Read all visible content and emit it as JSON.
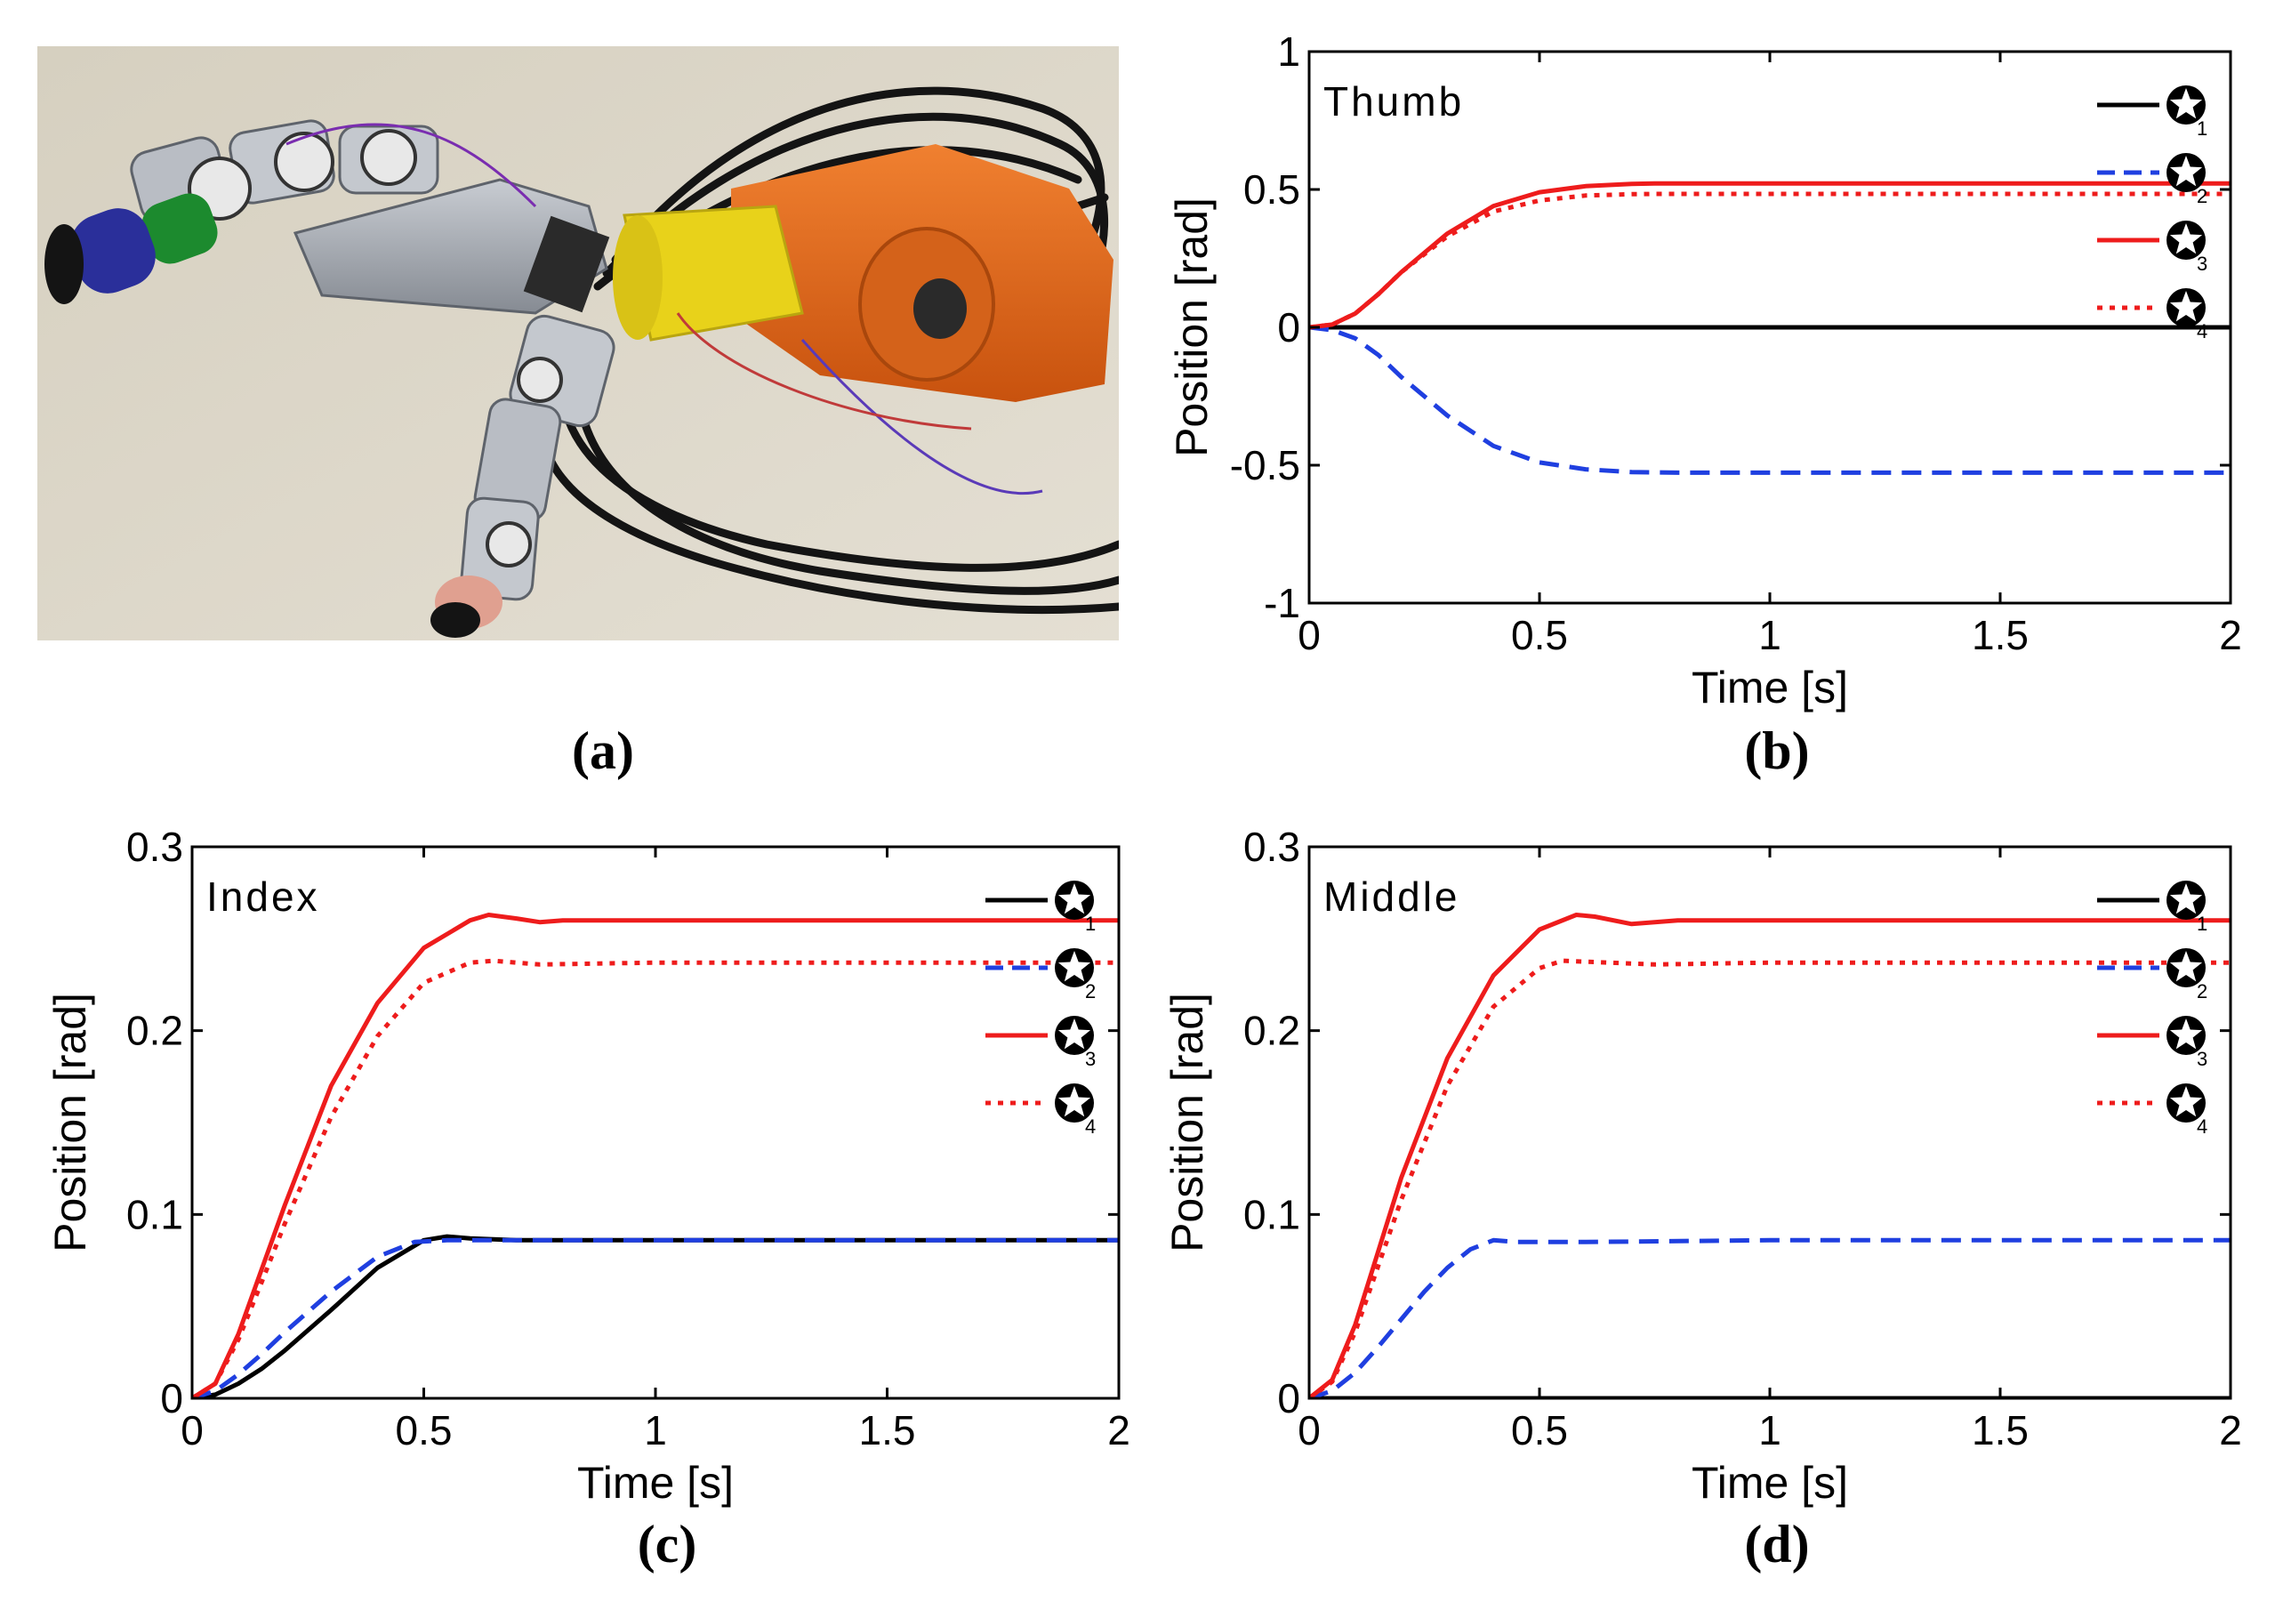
{
  "panels": {
    "a": "(a)",
    "b": "(b)",
    "c": "(c)",
    "d": "(d)"
  },
  "photo": {
    "subject": "robotic-hand-mounted-on-arm",
    "colors": {
      "wall": "#d8d2c4",
      "arm_orange": "#e06a1c",
      "arm_yellow": "#e8d21a",
      "metal": "#a9adb3",
      "cable": "#141414",
      "finger_green": "#1c8a2e",
      "finger_blue": "#2a2f9a",
      "finger_pink": "#e0a090"
    }
  },
  "legend": {
    "markers": [
      "1",
      "2",
      "3",
      "4"
    ],
    "styles": [
      "solid-black",
      "dashed-blue",
      "solid-red",
      "dotted-red"
    ]
  },
  "colors": {
    "black": "#000000",
    "blue": "#1f3fe0",
    "red": "#ee1c1c"
  },
  "chart_data": [
    {
      "panel": "b",
      "type": "line",
      "annotation": "Thumb",
      "xlabel": "Time [s]",
      "ylabel": "Position [rad]",
      "xlim": [
        0,
        2
      ],
      "ylim": [
        -1,
        1
      ],
      "xticks": [
        "0",
        "0.5",
        "1",
        "1.5",
        "2"
      ],
      "yticks": [
        "-1",
        "-0.5",
        "0",
        "0.5",
        "1"
      ],
      "series": [
        {
          "marker": "1",
          "style": "solid-black",
          "x": [
            0,
            2
          ],
          "y": [
            0,
            0
          ]
        },
        {
          "marker": "2",
          "style": "dashed-blue",
          "x": [
            0,
            0.05,
            0.1,
            0.15,
            0.2,
            0.3,
            0.4,
            0.5,
            0.6,
            0.7,
            0.8,
            1.0,
            2.0
          ],
          "y": [
            0,
            -0.01,
            -0.04,
            -0.1,
            -0.18,
            -0.32,
            -0.43,
            -0.49,
            -0.515,
            -0.525,
            -0.527,
            -0.527,
            -0.527
          ]
        },
        {
          "marker": "3",
          "style": "solid-red",
          "x": [
            0,
            0.05,
            0.1,
            0.15,
            0.2,
            0.3,
            0.4,
            0.5,
            0.6,
            0.7,
            0.75,
            1.0,
            2.0
          ],
          "y": [
            0,
            0.01,
            0.05,
            0.12,
            0.2,
            0.34,
            0.44,
            0.49,
            0.512,
            0.52,
            0.522,
            0.522,
            0.522
          ]
        },
        {
          "marker": "4",
          "style": "dotted-red",
          "x": [
            0,
            0.05,
            0.1,
            0.15,
            0.2,
            0.3,
            0.4,
            0.5,
            0.6,
            0.7,
            0.75,
            1.0,
            2.0
          ],
          "y": [
            0,
            0.01,
            0.05,
            0.12,
            0.2,
            0.33,
            0.42,
            0.46,
            0.478,
            0.483,
            0.484,
            0.484,
            0.484
          ]
        }
      ]
    },
    {
      "panel": "c",
      "type": "line",
      "annotation": "Index",
      "xlabel": "Time [s]",
      "ylabel": "Position [rad]",
      "xlim": [
        0,
        2
      ],
      "ylim": [
        0,
        0.3
      ],
      "xticks": [
        "0",
        "0.5",
        "1",
        "1.5",
        "2"
      ],
      "yticks": [
        "0",
        "0.1",
        "0.2",
        "0.3"
      ],
      "series": [
        {
          "marker": "1",
          "style": "solid-black",
          "x": [
            0,
            0.05,
            0.1,
            0.15,
            0.2,
            0.3,
            0.4,
            0.5,
            0.55,
            0.6,
            0.7,
            1.0,
            2.0
          ],
          "y": [
            0,
            0.002,
            0.008,
            0.016,
            0.026,
            0.048,
            0.071,
            0.086,
            0.088,
            0.087,
            0.086,
            0.086,
            0.086
          ]
        },
        {
          "marker": "2",
          "style": "dashed-blue",
          "x": [
            0,
            0.05,
            0.1,
            0.15,
            0.2,
            0.3,
            0.4,
            0.48,
            0.55,
            0.7,
            1.0,
            2.0
          ],
          "y": [
            0,
            0.004,
            0.013,
            0.024,
            0.036,
            0.058,
            0.077,
            0.085,
            0.086,
            0.086,
            0.086,
            0.086
          ]
        },
        {
          "marker": "3",
          "style": "solid-red",
          "x": [
            0,
            0.05,
            0.1,
            0.15,
            0.2,
            0.3,
            0.4,
            0.5,
            0.6,
            0.64,
            0.7,
            0.75,
            0.8,
            1.0,
            2.0
          ],
          "y": [
            0,
            0.008,
            0.035,
            0.07,
            0.105,
            0.17,
            0.215,
            0.245,
            0.26,
            0.263,
            0.261,
            0.259,
            0.26,
            0.26,
            0.26
          ]
        },
        {
          "marker": "4",
          "style": "dotted-red",
          "x": [
            0,
            0.05,
            0.1,
            0.15,
            0.2,
            0.3,
            0.4,
            0.5,
            0.6,
            0.65,
            0.75,
            1.0,
            2.0
          ],
          "y": [
            0,
            0.008,
            0.032,
            0.063,
            0.095,
            0.153,
            0.197,
            0.226,
            0.237,
            0.238,
            0.236,
            0.237,
            0.237
          ]
        }
      ]
    },
    {
      "panel": "d",
      "type": "line",
      "annotation": "Middle",
      "xlabel": "Time [s]",
      "ylabel": "Position [rad]",
      "xlim": [
        0,
        2
      ],
      "ylim": [
        0,
        0.3
      ],
      "xticks": [
        "0",
        "0.5",
        "1",
        "1.5",
        "2"
      ],
      "yticks": [
        "0",
        "0.1",
        "0.2",
        "0.3"
      ],
      "series": [
        {
          "marker": "1",
          "style": "solid-black",
          "x": [
            0,
            2
          ],
          "y": [
            0,
            0
          ]
        },
        {
          "marker": "2",
          "style": "dashed-blue",
          "x": [
            0,
            0.05,
            0.1,
            0.15,
            0.2,
            0.25,
            0.3,
            0.35,
            0.4,
            0.45,
            0.6,
            1.0,
            2.0
          ],
          "y": [
            0,
            0.004,
            0.014,
            0.028,
            0.043,
            0.058,
            0.071,
            0.081,
            0.086,
            0.085,
            0.085,
            0.086,
            0.086
          ]
        },
        {
          "marker": "3",
          "style": "solid-red",
          "x": [
            0,
            0.05,
            0.1,
            0.15,
            0.2,
            0.3,
            0.4,
            0.5,
            0.58,
            0.62,
            0.7,
            0.8,
            1.0,
            2.0
          ],
          "y": [
            0,
            0.01,
            0.04,
            0.08,
            0.12,
            0.185,
            0.23,
            0.255,
            0.263,
            0.262,
            0.258,
            0.26,
            0.26,
            0.26
          ]
        },
        {
          "marker": "4",
          "style": "dotted-red",
          "x": [
            0,
            0.05,
            0.1,
            0.15,
            0.2,
            0.3,
            0.4,
            0.5,
            0.55,
            0.65,
            0.75,
            1.0,
            2.0
          ],
          "y": [
            0,
            0.009,
            0.036,
            0.072,
            0.108,
            0.17,
            0.213,
            0.234,
            0.238,
            0.237,
            0.236,
            0.237,
            0.237
          ]
        }
      ]
    }
  ]
}
